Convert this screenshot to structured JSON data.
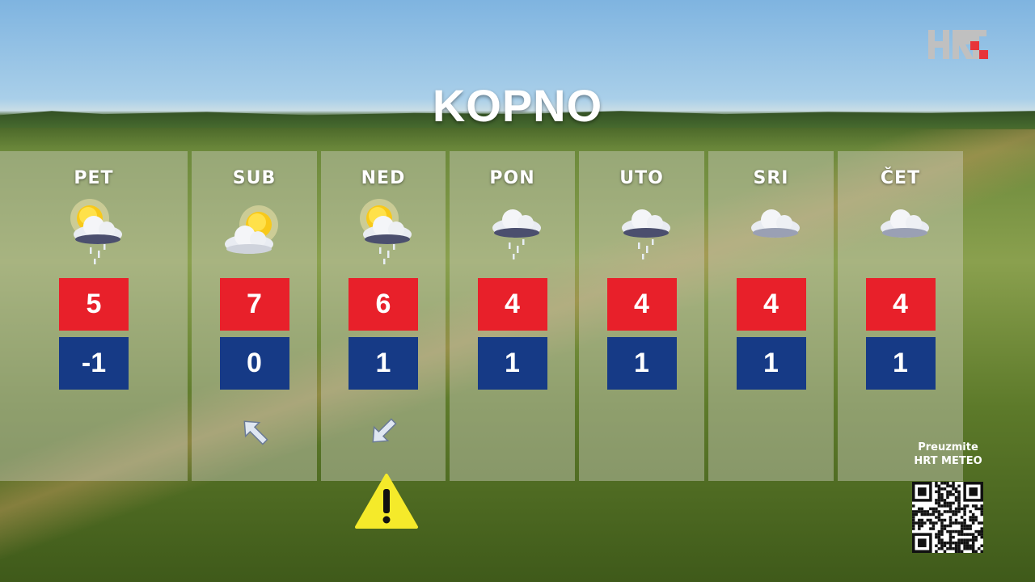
{
  "logo": "HRT",
  "title": "KOPNO",
  "days": [
    {
      "day": "PET",
      "icon": "sun-cloud-rain-icon",
      "max": "5",
      "min": "-1",
      "wind": null
    },
    {
      "day": "SUB",
      "icon": "sun-cloud-icon",
      "max": "7",
      "min": "0",
      "wind": "northwest"
    },
    {
      "day": "NED",
      "icon": "sun-cloud-rain-icon",
      "max": "6",
      "min": "1",
      "wind": "southwest"
    },
    {
      "day": "PON",
      "icon": "cloud-rain-icon",
      "max": "4",
      "min": "1",
      "wind": null
    },
    {
      "day": "UTO",
      "icon": "cloud-rain-icon",
      "max": "4",
      "min": "1",
      "wind": null
    },
    {
      "day": "SRI",
      "icon": "cloud-icon",
      "max": "4",
      "min": "1",
      "wind": null
    },
    {
      "day": "ČET",
      "icon": "cloud-icon",
      "max": "4",
      "min": "1",
      "wind": null
    }
  ],
  "warning_day": "NED",
  "promo": {
    "line1": "Preuzmite",
    "line2": "HRT METEO"
  },
  "colors": {
    "max": "#e8202a",
    "min": "#163a86",
    "warning": "#f5ea2a"
  }
}
